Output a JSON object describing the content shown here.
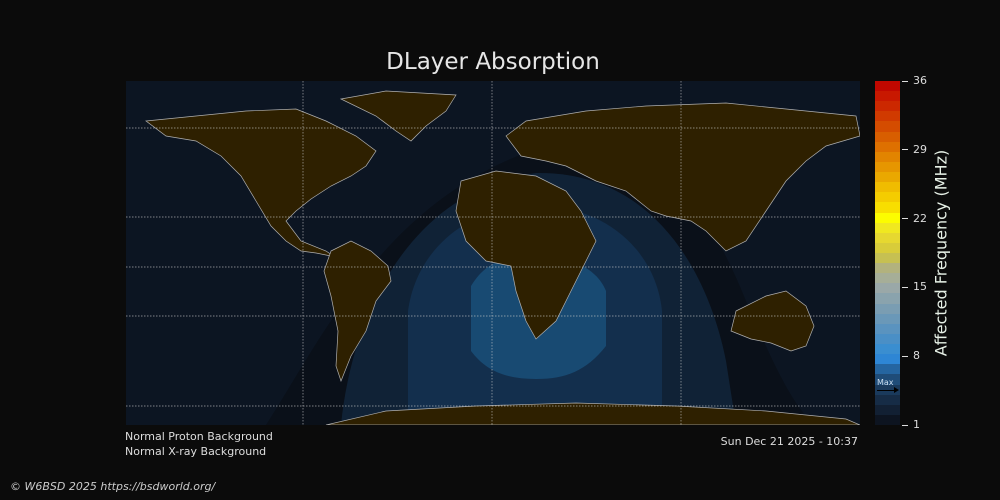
{
  "title": "DLayer Absorption",
  "colorbar": {
    "label": "Affected Frequency (MHz)",
    "ticks": [
      "36",
      "29",
      "22",
      "15",
      "8",
      "1"
    ],
    "min": 1,
    "max": 36,
    "max_marker_label": "Max",
    "max_marker_value": 5,
    "colors": [
      "#0d1420",
      "#122033",
      "#162c46",
      "#1a3a5c",
      "#1f4c78",
      "#2565a0",
      "#2e86d4",
      "#3a8ed0",
      "#4a8fc6",
      "#5a93bf",
      "#6a98b8",
      "#7a9db2",
      "#8aa3ad",
      "#9aa8a8",
      "#a6ae98",
      "#b2b27e",
      "#c6c052",
      "#d8cc3a",
      "#e6d830",
      "#f0e820",
      "#fcfc00",
      "#f8de00",
      "#f4cc00",
      "#f0bc00",
      "#eaa800",
      "#e69600",
      "#e28400",
      "#de7000",
      "#d85e00",
      "#d44c00",
      "#d03a00",
      "#cc2800",
      "#c81800",
      "#c00800"
    ]
  },
  "status": {
    "proton": "Normal Proton Background",
    "xray": "Normal X-ray Background"
  },
  "timestamp": "Sun Dec 21 2025 - 10:37",
  "copyright": "© W6BSD 2025 https://bsdworld.org/",
  "colors": {
    "ocean": "#0c1522",
    "land": "#2e2000",
    "coast": "#b0b0b0",
    "zone1": "#0f1a28",
    "zone2": "#132a42",
    "zone3": "#173a5c",
    "zone4": "#1a4a72"
  }
}
